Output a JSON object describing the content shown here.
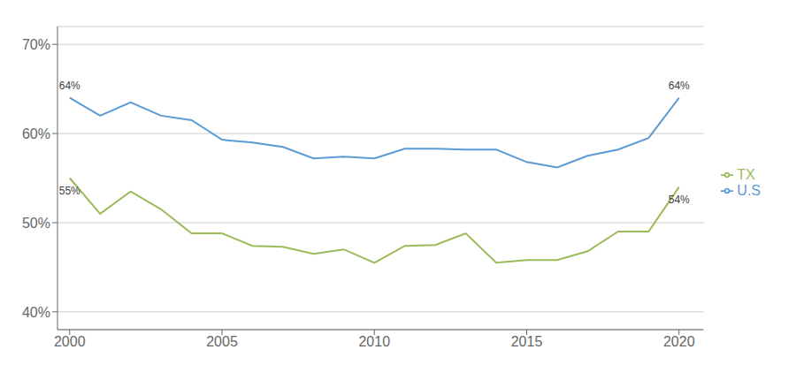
{
  "chart_data": {
    "type": "line",
    "x": [
      2000,
      2001,
      2002,
      2003,
      2004,
      2005,
      2006,
      2007,
      2008,
      2009,
      2010,
      2011,
      2012,
      2013,
      2014,
      2015,
      2016,
      2017,
      2018,
      2019,
      2020
    ],
    "series": [
      {
        "name": "U.S",
        "color": "#5B9BD5",
        "values": [
          0.64,
          0.62,
          0.635,
          0.62,
          0.615,
          0.593,
          0.59,
          0.585,
          0.572,
          0.574,
          0.572,
          0.583,
          0.583,
          0.582,
          0.582,
          0.568,
          0.562,
          0.575,
          0.582,
          0.595,
          0.64
        ],
        "annotations": [
          {
            "x": 2000,
            "y": 0.64,
            "text": "64%"
          },
          {
            "x": 2020,
            "y": 0.64,
            "text": "64%"
          }
        ]
      },
      {
        "name": "TX",
        "color": "#9BBB59",
        "values": [
          0.55,
          0.51,
          0.535,
          0.515,
          0.488,
          0.488,
          0.474,
          0.473,
          0.465,
          0.47,
          0.455,
          0.474,
          0.475,
          0.488,
          0.455,
          0.458,
          0.458,
          0.468,
          0.49,
          0.49,
          0.54
        ],
        "annotations": [
          {
            "x": 2000,
            "y": 0.55,
            "text": "55%"
          },
          {
            "x": 2020,
            "y": 0.54,
            "text": "54%"
          }
        ]
      }
    ],
    "xlim": [
      1999.6,
      2020.8
    ],
    "xticks": [
      2000,
      2005,
      2010,
      2015,
      2020
    ],
    "ylim": [
      0.38,
      0.72
    ],
    "yticks": [
      {
        "value": 0.4,
        "label": "40%"
      },
      {
        "value": 0.5,
        "label": "50%"
      },
      {
        "value": 0.6,
        "label": "60%"
      },
      {
        "value": 0.7,
        "label": "70%"
      }
    ],
    "grid": true,
    "legend": "right"
  }
}
